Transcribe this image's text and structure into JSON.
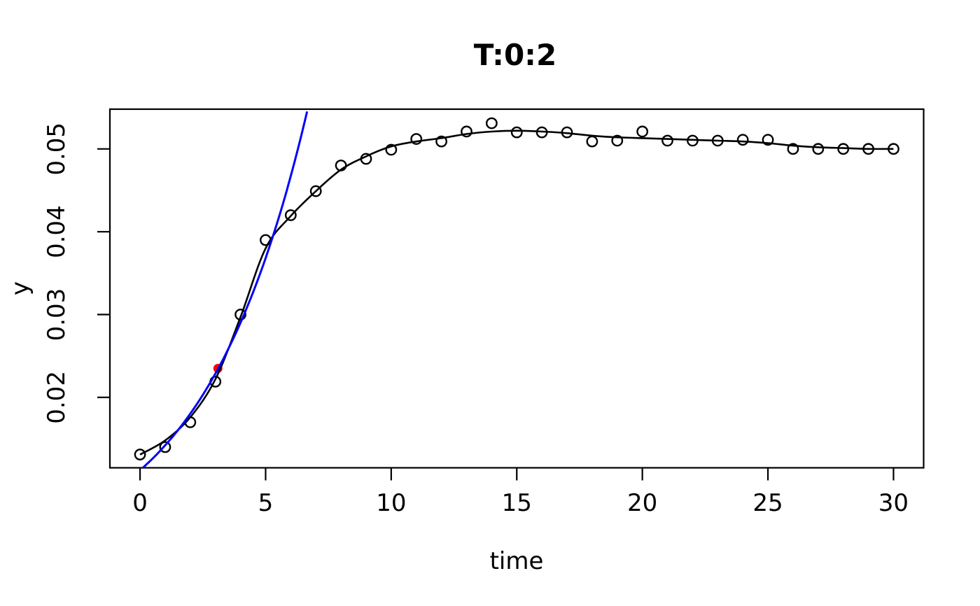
{
  "chart_data": {
    "type": "scatter",
    "title": "T:0:2",
    "xlabel": "time",
    "ylabel": "y",
    "xlim": [
      -1.2,
      31.2
    ],
    "ylim": [
      0.0115,
      0.0548
    ],
    "x_ticks": [
      0,
      5,
      10,
      15,
      20,
      25,
      30
    ],
    "x_tick_labels": [
      "0",
      "5",
      "10",
      "15",
      "20",
      "25",
      "30"
    ],
    "y_ticks": [
      0.02,
      0.03,
      0.04,
      0.05
    ],
    "y_tick_labels": [
      "0.02",
      "0.03",
      "0.04",
      "0.05"
    ],
    "grid": false,
    "legend": false,
    "background_color": "#FFFFFF",
    "axis_color": "#000000",
    "series": [
      {
        "name": "observations",
        "type": "points",
        "marker": "open-circle",
        "color": "#000000",
        "t": [
          0,
          1,
          2,
          3,
          4,
          5,
          6,
          7,
          8,
          9,
          10,
          11,
          12,
          13,
          14,
          15,
          16,
          17,
          18,
          19,
          20,
          21,
          22,
          23,
          24,
          25,
          26,
          27,
          28,
          29,
          30
        ],
        "y": [
          0.0131,
          0.014,
          0.017,
          0.0219,
          0.03,
          0.039,
          0.042,
          0.0449,
          0.048,
          0.0488,
          0.0499,
          0.0512,
          0.0509,
          0.0521,
          0.0531,
          0.052,
          0.052,
          0.052,
          0.0509,
          0.051,
          0.0521,
          0.051,
          0.051,
          0.051,
          0.0511,
          0.0511,
          0.05,
          0.05,
          0.05,
          0.05,
          0.05
        ]
      },
      {
        "name": "smooth-fit-line",
        "type": "line",
        "color": "#000000",
        "t": [
          0,
          1,
          2,
          3,
          4,
          5,
          6,
          7,
          8,
          9,
          10,
          11,
          12,
          13,
          14,
          15,
          16,
          17,
          18,
          19,
          20,
          21,
          22,
          23,
          24,
          25,
          26,
          27,
          28,
          29,
          30
        ],
        "y": [
          0.0131,
          0.0148,
          0.0176,
          0.0222,
          0.0297,
          0.038,
          0.0419,
          0.0449,
          0.0475,
          0.0491,
          0.0503,
          0.0509,
          0.0513,
          0.0518,
          0.0521,
          0.0522,
          0.0521,
          0.0519,
          0.0516,
          0.0514,
          0.0513,
          0.0512,
          0.0511,
          0.051,
          0.0509,
          0.0507,
          0.0504,
          0.0502,
          0.0501,
          0.05,
          0.05
        ]
      },
      {
        "name": "exponential-extrapolation",
        "type": "exp-curve",
        "color": "#0000FF",
        "model": "y = y0 * exp(k * t)",
        "y0": 0.0112,
        "k": 0.238,
        "t_range": [
          0.05,
          6.68
        ]
      },
      {
        "name": "prediction-point",
        "type": "point",
        "marker": "filled-circle",
        "color": "#FF0000",
        "t": 3.1,
        "y": 0.0235
      }
    ]
  }
}
